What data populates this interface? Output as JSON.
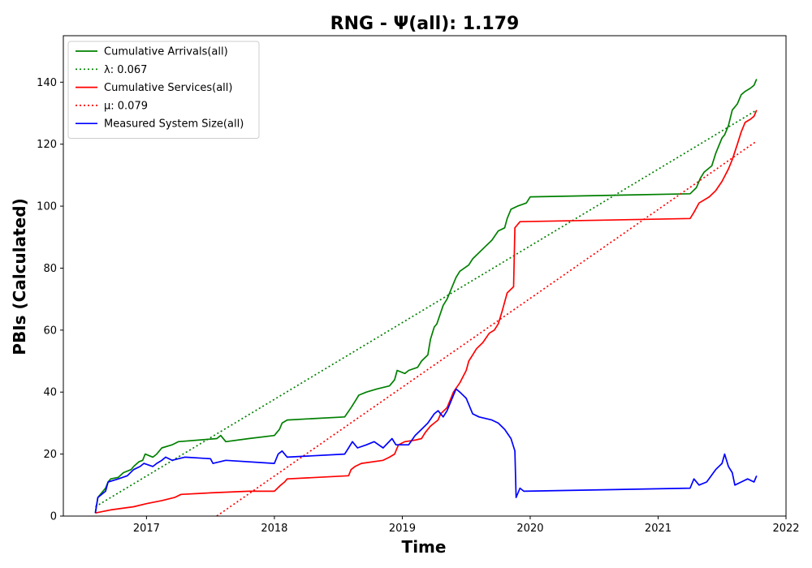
{
  "chart_data": {
    "type": "line",
    "title": "RNG -  Ψ(all): 1.179",
    "xlabel": "Time",
    "ylabel": "PBIs (Calculated)",
    "xlim": [
      2016.35,
      2022.0
    ],
    "ylim": [
      0,
      155
    ],
    "x_ticks": [
      2017,
      2018,
      2019,
      2020,
      2021,
      2022
    ],
    "x_tick_labels": [
      "2017",
      "2018",
      "2019",
      "2020",
      "2021",
      "2022"
    ],
    "y_ticks": [
      0,
      20,
      40,
      60,
      80,
      100,
      120,
      140
    ],
    "y_tick_labels": [
      "0",
      "20",
      "40",
      "60",
      "80",
      "100",
      "120",
      "140"
    ],
    "grid": false,
    "legend_position": "upper-left",
    "series": [
      {
        "name": "Cumulative Arrivals(all)",
        "color": "#008000",
        "style": "solid",
        "points": [
          [
            2016.6,
            1
          ],
          [
            2016.62,
            6
          ],
          [
            2016.68,
            9
          ],
          [
            2016.7,
            11
          ],
          [
            2016.72,
            12
          ],
          [
            2016.78,
            12.5
          ],
          [
            2016.82,
            14
          ],
          [
            2016.88,
            15
          ],
          [
            2016.9,
            16
          ],
          [
            2016.94,
            17.5
          ],
          [
            2016.97,
            18
          ],
          [
            2016.99,
            20
          ],
          [
            2017.05,
            19
          ],
          [
            2017.08,
            20
          ],
          [
            2017.12,
            22
          ],
          [
            2017.2,
            23
          ],
          [
            2017.25,
            24
          ],
          [
            2017.55,
            25
          ],
          [
            2017.58,
            26
          ],
          [
            2017.62,
            24
          ],
          [
            2017.8,
            25
          ],
          [
            2018.0,
            26
          ],
          [
            2018.04,
            28
          ],
          [
            2018.06,
            30
          ],
          [
            2018.1,
            31
          ],
          [
            2018.55,
            32
          ],
          [
            2018.6,
            35
          ],
          [
            2018.63,
            37
          ],
          [
            2018.66,
            39
          ],
          [
            2018.72,
            40
          ],
          [
            2018.8,
            41
          ],
          [
            2018.9,
            42
          ],
          [
            2018.94,
            44
          ],
          [
            2018.96,
            47
          ],
          [
            2019.02,
            46
          ],
          [
            2019.05,
            47
          ],
          [
            2019.12,
            48
          ],
          [
            2019.15,
            50
          ],
          [
            2019.2,
            52
          ],
          [
            2019.22,
            57
          ],
          [
            2019.25,
            61
          ],
          [
            2019.27,
            62
          ],
          [
            2019.32,
            68
          ],
          [
            2019.35,
            70
          ],
          [
            2019.38,
            73
          ],
          [
            2019.42,
            77
          ],
          [
            2019.45,
            79
          ],
          [
            2019.52,
            81
          ],
          [
            2019.55,
            83
          ],
          [
            2019.6,
            85
          ],
          [
            2019.65,
            87
          ],
          [
            2019.7,
            89
          ],
          [
            2019.75,
            92
          ],
          [
            2019.8,
            93
          ],
          [
            2019.82,
            96
          ],
          [
            2019.85,
            99
          ],
          [
            2019.9,
            100
          ],
          [
            2019.97,
            101
          ],
          [
            2020.0,
            103
          ],
          [
            2021.25,
            104
          ],
          [
            2021.3,
            106
          ],
          [
            2021.33,
            109
          ],
          [
            2021.36,
            111
          ],
          [
            2021.42,
            113
          ],
          [
            2021.45,
            117
          ],
          [
            2021.5,
            122
          ],
          [
            2021.52,
            123
          ],
          [
            2021.55,
            126
          ],
          [
            2021.58,
            131
          ],
          [
            2021.62,
            133
          ],
          [
            2021.65,
            136
          ],
          [
            2021.68,
            137
          ],
          [
            2021.72,
            138
          ],
          [
            2021.75,
            139
          ],
          [
            2021.77,
            141
          ]
        ]
      },
      {
        "name": "λ: 0.067",
        "color": "#008000",
        "style": "dotted",
        "points": [
          [
            2016.6,
            3
          ],
          [
            2021.77,
            131
          ]
        ]
      },
      {
        "name": "Cumulative Services(all)",
        "color": "#ff0000",
        "style": "solid",
        "points": [
          [
            2016.6,
            1
          ],
          [
            2016.72,
            2
          ],
          [
            2016.9,
            3
          ],
          [
            2017.0,
            4
          ],
          [
            2017.12,
            5
          ],
          [
            2017.22,
            6
          ],
          [
            2017.27,
            7
          ],
          [
            2017.5,
            7.5
          ],
          [
            2017.8,
            8
          ],
          [
            2018.0,
            8
          ],
          [
            2018.05,
            10
          ],
          [
            2018.08,
            11
          ],
          [
            2018.1,
            12
          ],
          [
            2018.58,
            13
          ],
          [
            2018.6,
            15
          ],
          [
            2018.63,
            16
          ],
          [
            2018.68,
            17
          ],
          [
            2018.85,
            18
          ],
          [
            2018.9,
            19
          ],
          [
            2018.94,
            20
          ],
          [
            2018.97,
            23
          ],
          [
            2019.02,
            24
          ],
          [
            2019.1,
            24.5
          ],
          [
            2019.15,
            25
          ],
          [
            2019.18,
            27
          ],
          [
            2019.22,
            29
          ],
          [
            2019.25,
            30
          ],
          [
            2019.28,
            31
          ],
          [
            2019.3,
            33
          ],
          [
            2019.35,
            35
          ],
          [
            2019.38,
            38
          ],
          [
            2019.4,
            40
          ],
          [
            2019.45,
            43
          ],
          [
            2019.5,
            47
          ],
          [
            2019.52,
            50
          ],
          [
            2019.55,
            52
          ],
          [
            2019.58,
            54
          ],
          [
            2019.63,
            56
          ],
          [
            2019.68,
            59
          ],
          [
            2019.72,
            60
          ],
          [
            2019.75,
            62
          ],
          [
            2019.78,
            66
          ],
          [
            2019.82,
            72
          ],
          [
            2019.87,
            74
          ],
          [
            2019.88,
            93
          ],
          [
            2019.92,
            95
          ],
          [
            2021.25,
            96
          ],
          [
            2021.28,
            98
          ],
          [
            2021.32,
            101
          ],
          [
            2021.4,
            103
          ],
          [
            2021.45,
            105
          ],
          [
            2021.5,
            108
          ],
          [
            2021.55,
            112
          ],
          [
            2021.58,
            115
          ],
          [
            2021.62,
            120
          ],
          [
            2021.65,
            124
          ],
          [
            2021.68,
            127
          ],
          [
            2021.72,
            128
          ],
          [
            2021.75,
            129
          ],
          [
            2021.77,
            131
          ]
        ]
      },
      {
        "name": "μ: 0.079",
        "color": "#ff0000",
        "style": "dotted",
        "points": [
          [
            2017.55,
            0
          ],
          [
            2021.77,
            121
          ]
        ]
      },
      {
        "name": "Measured System Size(all)",
        "color": "#0000ff",
        "style": "solid",
        "points": [
          [
            2016.6,
            1
          ],
          [
            2016.62,
            6
          ],
          [
            2016.68,
            8
          ],
          [
            2016.7,
            11
          ],
          [
            2016.78,
            12
          ],
          [
            2016.85,
            13
          ],
          [
            2016.9,
            15
          ],
          [
            2016.95,
            16
          ],
          [
            2016.98,
            17
          ],
          [
            2017.05,
            16
          ],
          [
            2017.08,
            17
          ],
          [
            2017.12,
            18
          ],
          [
            2017.15,
            19
          ],
          [
            2017.2,
            18
          ],
          [
            2017.25,
            18.5
          ],
          [
            2017.3,
            19
          ],
          [
            2017.5,
            18.5
          ],
          [
            2017.52,
            17
          ],
          [
            2017.62,
            18
          ],
          [
            2018.0,
            17
          ],
          [
            2018.03,
            20
          ],
          [
            2018.06,
            21
          ],
          [
            2018.1,
            19
          ],
          [
            2018.55,
            20
          ],
          [
            2018.58,
            22
          ],
          [
            2018.61,
            24
          ],
          [
            2018.65,
            22
          ],
          [
            2018.72,
            23
          ],
          [
            2018.78,
            24
          ],
          [
            2018.85,
            22
          ],
          [
            2018.92,
            25
          ],
          [
            2018.95,
            23
          ],
          [
            2019.05,
            23
          ],
          [
            2019.1,
            26
          ],
          [
            2019.15,
            28
          ],
          [
            2019.2,
            30
          ],
          [
            2019.25,
            33
          ],
          [
            2019.28,
            34
          ],
          [
            2019.32,
            32
          ],
          [
            2019.35,
            34
          ],
          [
            2019.38,
            37
          ],
          [
            2019.42,
            41
          ],
          [
            2019.45,
            40
          ],
          [
            2019.5,
            38
          ],
          [
            2019.55,
            33
          ],
          [
            2019.6,
            32
          ],
          [
            2019.7,
            31
          ],
          [
            2019.75,
            30
          ],
          [
            2019.8,
            28
          ],
          [
            2019.85,
            25
          ],
          [
            2019.88,
            21
          ],
          [
            2019.89,
            6
          ],
          [
            2019.92,
            9
          ],
          [
            2019.95,
            8
          ],
          [
            2021.25,
            9
          ],
          [
            2021.28,
            12
          ],
          [
            2021.32,
            10
          ],
          [
            2021.38,
            11
          ],
          [
            2021.45,
            15
          ],
          [
            2021.5,
            17
          ],
          [
            2021.52,
            20
          ],
          [
            2021.55,
            16
          ],
          [
            2021.58,
            14
          ],
          [
            2021.6,
            10
          ],
          [
            2021.65,
            11
          ],
          [
            2021.7,
            12
          ],
          [
            2021.75,
            11
          ],
          [
            2021.77,
            13
          ]
        ]
      }
    ]
  }
}
